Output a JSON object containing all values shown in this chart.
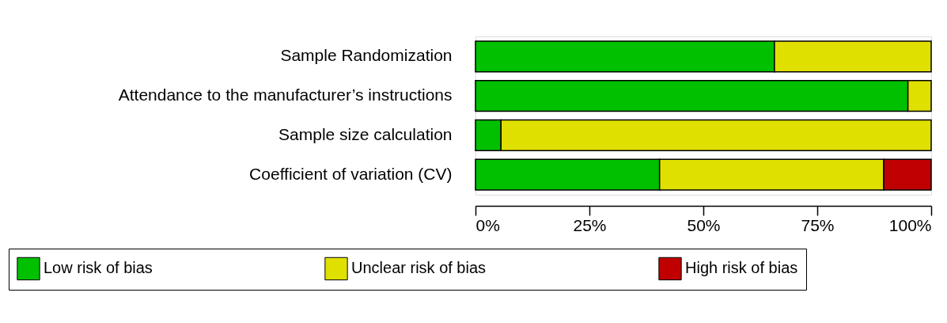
{
  "chart_data": {
    "type": "bar",
    "orientation": "horizontal",
    "stacked": true,
    "categories": [
      "Sample Randomization",
      "Attendance to the manufacturer’s instructions",
      "Sample size calculation",
      "Coefficient of variation (CV)"
    ],
    "series": [
      {
        "name": "Low risk of bias",
        "color": "#00c000",
        "values": [
          65.6,
          94.9,
          5.6,
          40.4
        ]
      },
      {
        "name": "Unclear risk of bias",
        "color": "#e0e000",
        "values": [
          34.4,
          5.1,
          94.4,
          49.2
        ]
      },
      {
        "name": "High risk of bias",
        "color": "#c00000",
        "values": [
          null,
          null,
          null,
          10.4
        ]
      }
    ],
    "xlim": [
      0,
      100
    ],
    "xticks": [
      {
        "value": 0,
        "label": "0%"
      },
      {
        "value": 25,
        "label": "25%"
      },
      {
        "value": 50,
        "label": "50%"
      },
      {
        "value": 75,
        "label": "75%"
      },
      {
        "value": 100,
        "label": "100%"
      }
    ],
    "grid": false,
    "legend": "bottom"
  }
}
